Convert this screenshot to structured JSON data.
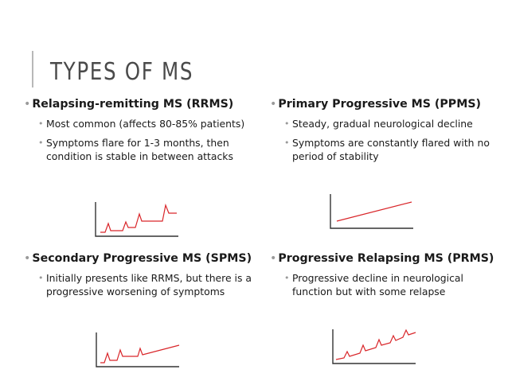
{
  "slide": {
    "title": "TYPES OF MS",
    "accent_color": "#d9262a",
    "sections": [
      {
        "heading": "Relapsing-remitting MS (RRMS)",
        "bullets": [
          "Most common (affects 80-85% patients)",
          "Symptoms flare for 1-3 months, then condition is stable in between attacks"
        ]
      },
      {
        "heading": "Primary Progressive MS (PPMS)",
        "bullets": [
          "Steady, gradual neurological decline",
          "Symptoms are constantly flared with no period of stability"
        ]
      },
      {
        "heading": "Secondary Progressive MS (SPMS)",
        "bullets": [
          "Initially presents like RRMS, but there is a progressive worsening of symptoms"
        ]
      },
      {
        "heading": "Progressive Relapsing MS (PRMS)",
        "bullets": [
          "Progressive decline in neurological function but with some relapse"
        ]
      }
    ]
  }
}
